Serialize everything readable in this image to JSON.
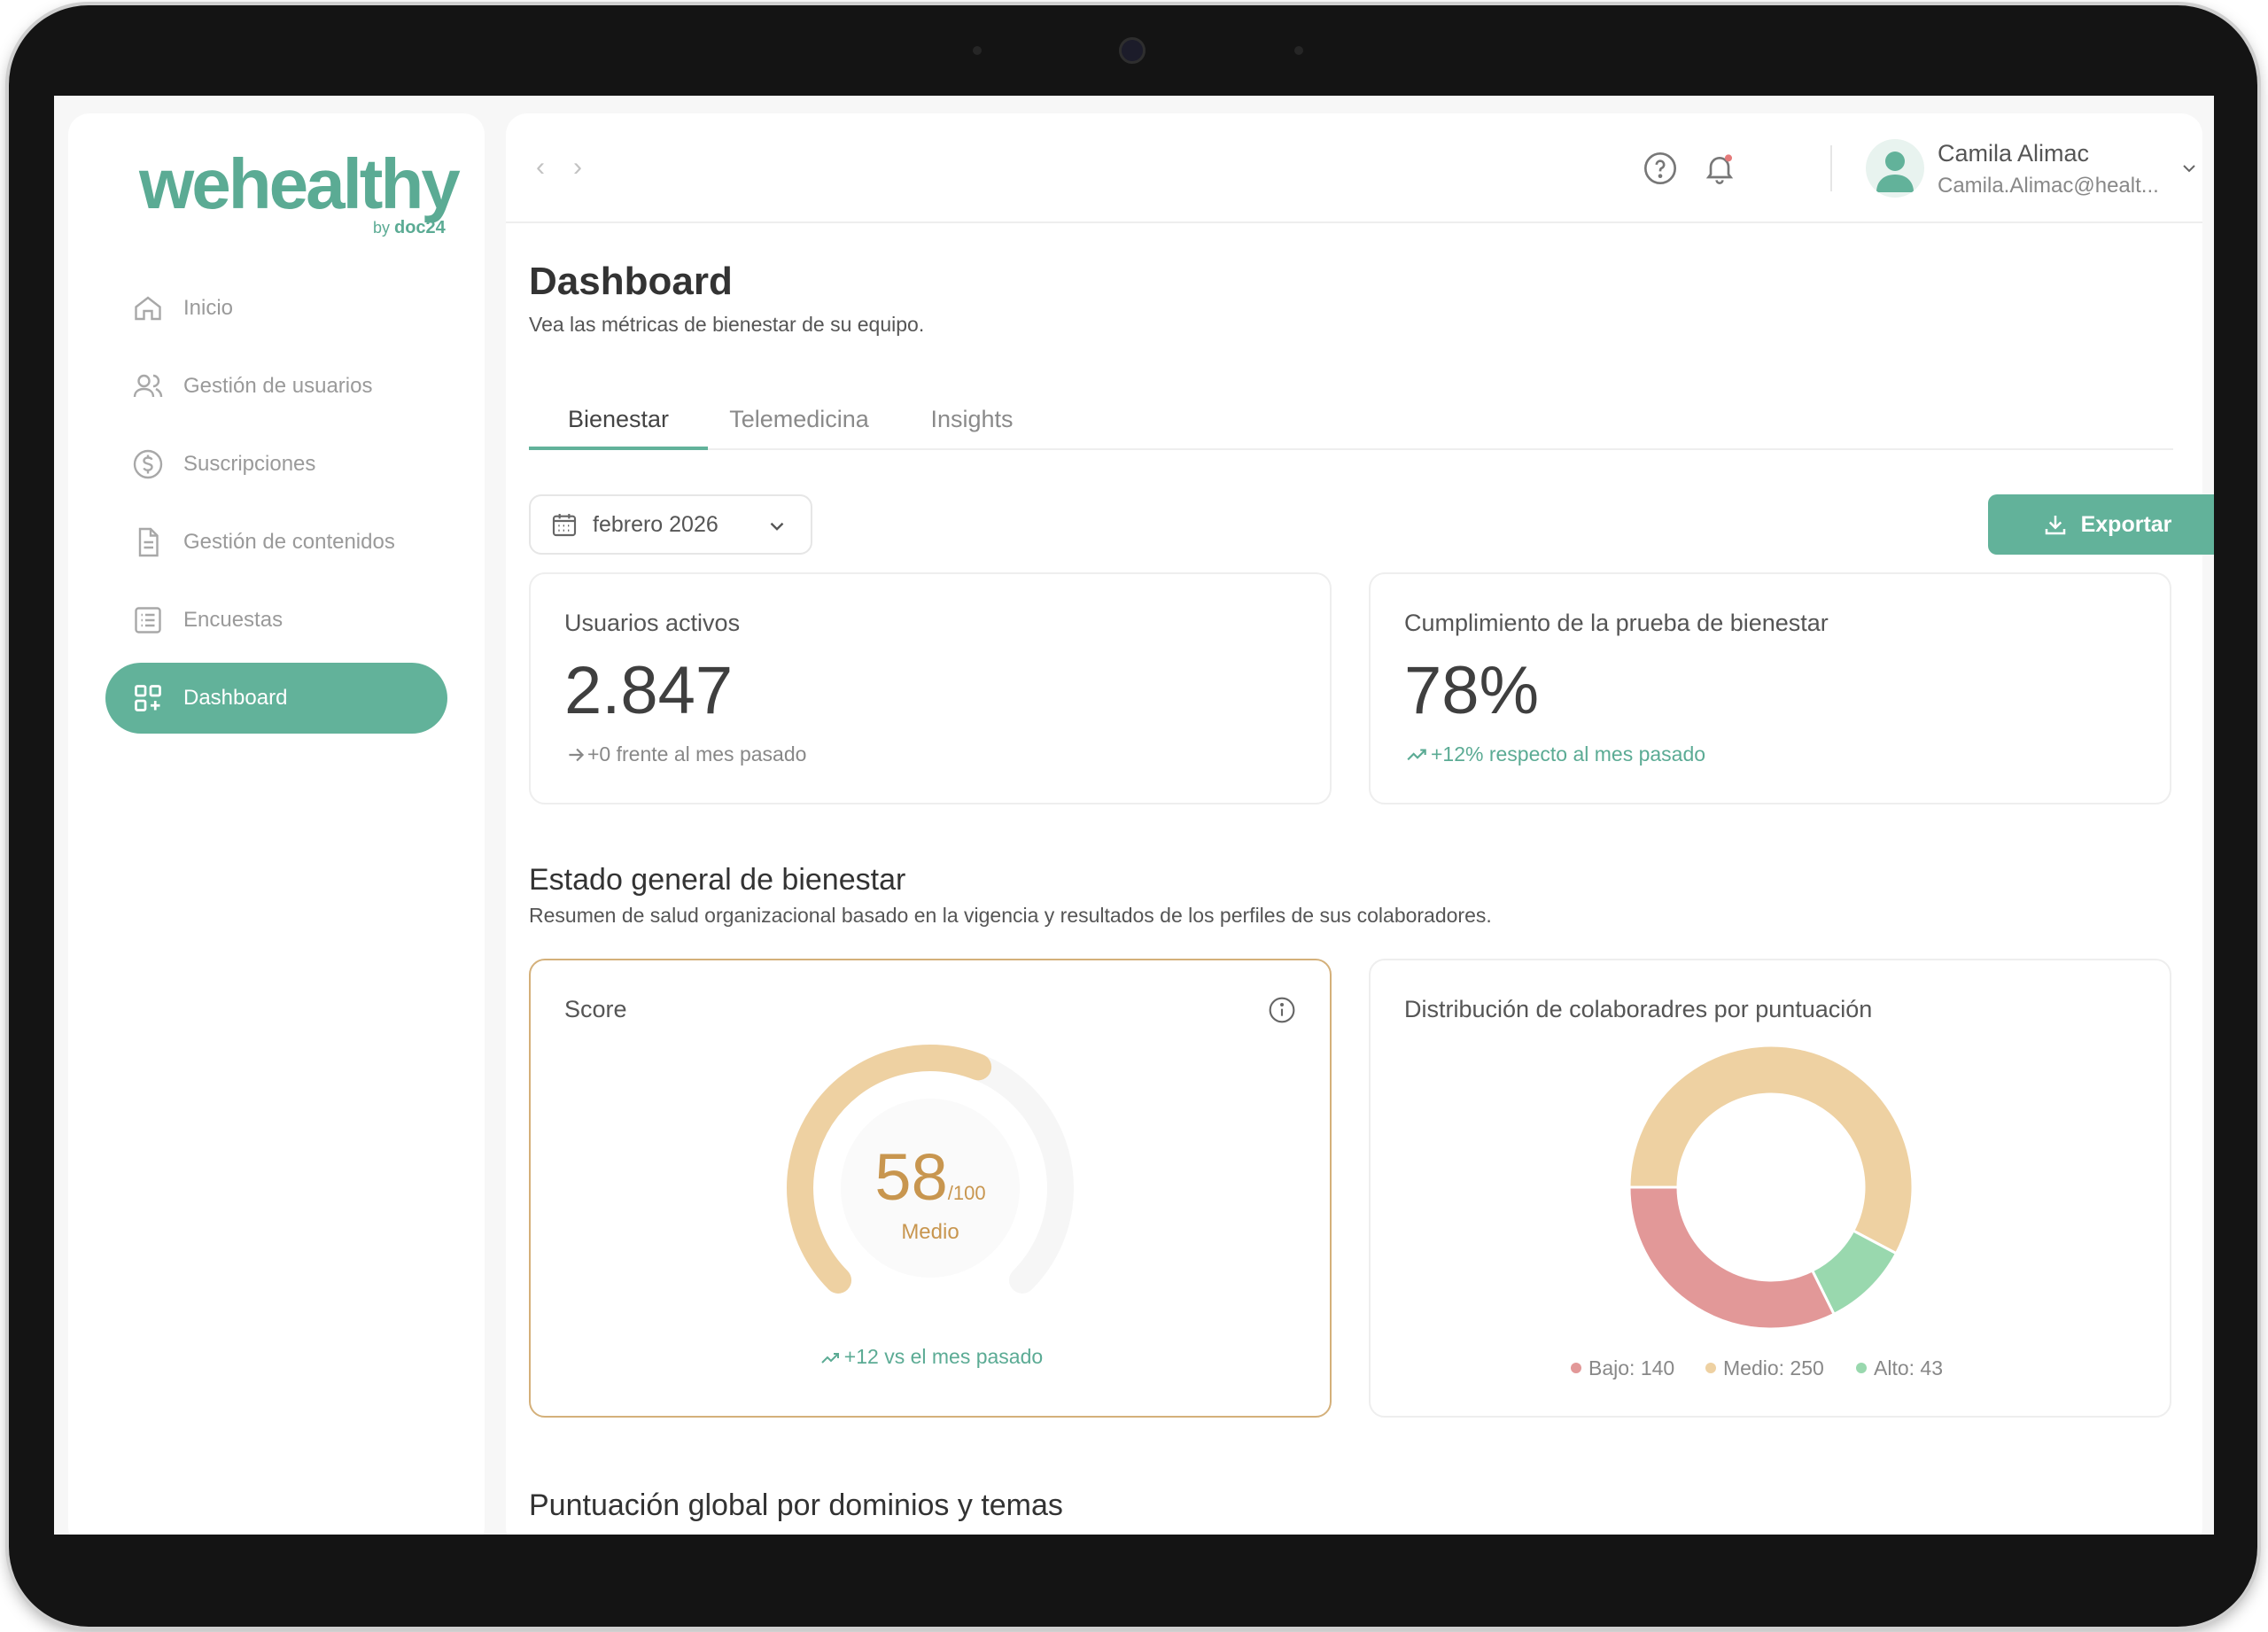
{
  "brand": {
    "logo_main": "wehealthy",
    "logo_by": "by",
    "logo_partner": "doc24",
    "accent": "#62b29a",
    "warning": "#d4b07a"
  },
  "sidebar": {
    "items": [
      {
        "label": "Inicio",
        "icon": "home-icon"
      },
      {
        "label": "Gestión de usuarios",
        "icon": "users-icon"
      },
      {
        "label": "Suscripciones",
        "icon": "dollar-circle-icon"
      },
      {
        "label": "Gestión de contenidos",
        "icon": "document-icon"
      },
      {
        "label": "Encuestas",
        "icon": "list-icon"
      },
      {
        "label": "Dashboard",
        "icon": "grid-plus-icon",
        "active": true
      }
    ]
  },
  "user": {
    "name": "Camila Alimac",
    "email": "Camila.Alimac@healt..."
  },
  "page": {
    "title": "Dashboard",
    "subtitle": "Vea las métricas de bienestar de su equipo."
  },
  "tabs": [
    {
      "label": "Bienestar",
      "active": true
    },
    {
      "label": "Telemedicina"
    },
    {
      "label": "Insights"
    }
  ],
  "filters": {
    "month": "febrero 2026",
    "export_label": "Exportar"
  },
  "kpis": {
    "active_users": {
      "title": "Usuarios activos",
      "value": "2.847",
      "note": "+0 frente al mes pasado"
    },
    "compliance": {
      "title": "Cumplimiento de la prueba de bienestar",
      "value": "78%",
      "note": "+12% respecto al mes pasado"
    }
  },
  "wellbeing": {
    "title": "Estado general de bienestar",
    "subtitle": "Resumen de salud organizacional basado en la vigencia y resultados de los perfiles de sus colaboradores.",
    "score": {
      "title": "Score",
      "value": 58,
      "value_text": "58",
      "max_text": "/100",
      "max": 100,
      "level": "Medio",
      "note": "+12 vs el mes pasado"
    },
    "distribution": {
      "title": "Distribución de colaboradres por puntuación"
    }
  },
  "domains_title": "Puntuación global por dominios y temas",
  "chart_data": {
    "type": "pie",
    "categories": [
      "Bajo",
      "Medio",
      "Alto"
    ],
    "values": [
      140,
      250,
      43
    ],
    "legend": [
      "Bajo: 140",
      "Medio: 250",
      "Alto: 43"
    ],
    "colors": [
      "#e29898",
      "#eed1a2",
      "#99d8ae"
    ],
    "legend_position": "bottom"
  }
}
